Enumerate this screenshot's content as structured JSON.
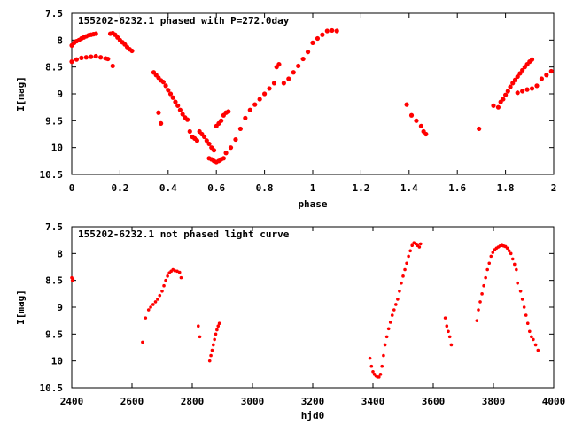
{
  "chart_data": [
    {
      "type": "scatter",
      "title": "155202-6232.1 phased with P=272.0day",
      "xlabel": "phase",
      "ylabel": "I[mag]",
      "xlim": [
        0,
        2
      ],
      "ylim": [
        10.5,
        7.5
      ],
      "y_inverted": true,
      "xticks": [
        "0",
        "0.2",
        "0.4",
        "0.6",
        "0.8",
        "1",
        "1.2",
        "1.4",
        "1.6",
        "1.8",
        "2"
      ],
      "yticks": [
        "7.5",
        "8",
        "8.5",
        "9",
        "9.5",
        "10",
        "10.5"
      ],
      "grid": false,
      "marker_color": "#ff0000",
      "series": [
        {
          "x": [
            0.0,
            0.01,
            0.02,
            0.03,
            0.04,
            0.05,
            0.06,
            0.07,
            0.08,
            0.09,
            0.1,
            0.0,
            0.02,
            0.04,
            0.06,
            0.08,
            0.1,
            0.12,
            0.14,
            0.15,
            0.16,
            0.17,
            0.18,
            0.19,
            0.2,
            0.21,
            0.22,
            0.23,
            0.24,
            0.25,
            0.17,
            0.34,
            0.35,
            0.36,
            0.37,
            0.38,
            0.36,
            0.37,
            0.39,
            0.4,
            0.41,
            0.42,
            0.43,
            0.44,
            0.45,
            0.46,
            0.47,
            0.48,
            0.49,
            0.5,
            0.51,
            0.52,
            0.53,
            0.54,
            0.55,
            0.56,
            0.57,
            0.58,
            0.59,
            0.6,
            0.61,
            0.62,
            0.63,
            0.64,
            0.65,
            0.57,
            0.58,
            0.59,
            0.6,
            0.61,
            0.62,
            0.63,
            0.64,
            0.66,
            0.68,
            0.7,
            0.72,
            0.74,
            0.76,
            0.78,
            0.8,
            0.82,
            0.84,
            0.85,
            0.86,
            0.88,
            0.9,
            0.92,
            0.94,
            0.96,
            0.98,
            1.0,
            1.02,
            1.04,
            1.06,
            1.08,
            1.1,
            1.39,
            1.41,
            1.43,
            1.45,
            1.46,
            1.47,
            1.69,
            1.75,
            1.77,
            1.78,
            1.79,
            1.8,
            1.81,
            1.82,
            1.83,
            1.84,
            1.85,
            1.86,
            1.87,
            1.88,
            1.89,
            1.9,
            1.91,
            1.85,
            1.87,
            1.89,
            1.91,
            1.93,
            1.95,
            1.97,
            1.99
          ],
          "y": [
            8.1,
            8.05,
            8.02,
            8.0,
            7.97,
            7.95,
            7.93,
            7.91,
            7.9,
            7.89,
            7.88,
            8.4,
            8.36,
            8.33,
            8.32,
            8.31,
            8.3,
            8.32,
            8.34,
            8.35,
            7.88,
            7.87,
            7.9,
            7.95,
            8.0,
            8.04,
            8.08,
            8.13,
            8.17,
            8.2,
            8.48,
            8.6,
            8.65,
            8.7,
            8.75,
            8.78,
            9.35,
            9.55,
            8.85,
            8.93,
            9.0,
            9.07,
            9.15,
            9.22,
            9.3,
            9.38,
            9.44,
            9.48,
            9.7,
            9.8,
            9.83,
            9.87,
            9.7,
            9.75,
            9.8,
            9.87,
            9.93,
            10.0,
            10.05,
            9.6,
            9.55,
            9.5,
            9.4,
            9.35,
            9.33,
            10.2,
            10.22,
            10.25,
            10.27,
            10.25,
            10.22,
            10.2,
            10.1,
            10.0,
            9.85,
            9.65,
            9.45,
            9.3,
            9.2,
            9.1,
            9.0,
            8.9,
            8.8,
            8.5,
            8.45,
            8.8,
            8.72,
            8.6,
            8.48,
            8.35,
            8.22,
            8.05,
            7.97,
            7.9,
            7.83,
            7.82,
            7.83,
            9.2,
            9.4,
            9.5,
            9.6,
            9.7,
            9.75,
            9.65,
            9.22,
            9.25,
            9.15,
            9.1,
            9.02,
            8.95,
            8.87,
            8.8,
            8.74,
            8.68,
            8.62,
            8.56,
            8.5,
            8.45,
            8.4,
            8.36,
            8.98,
            8.95,
            8.92,
            8.9,
            8.85,
            8.72,
            8.65,
            8.58
          ]
        }
      ]
    },
    {
      "type": "scatter",
      "title": "155202-6232.1 not phased light curve",
      "xlabel": "hjd0",
      "ylabel": "I[mag]",
      "xlim": [
        2400,
        4000
      ],
      "ylim": [
        10.5,
        7.5
      ],
      "y_inverted": true,
      "xticks": [
        "2400",
        "2600",
        "2800",
        "3000",
        "3200",
        "3400",
        "3600",
        "3800",
        "4000"
      ],
      "yticks": [
        "7.5",
        "8",
        "8.5",
        "9",
        "9.5",
        "10",
        "10.5"
      ],
      "grid": false,
      "marker_color": "#ff0000",
      "series": [
        {
          "x": [
            2400,
            2402,
            2404,
            2635,
            2645,
            2655,
            2662,
            2670,
            2678,
            2685,
            2692,
            2700,
            2706,
            2712,
            2718,
            2724,
            2730,
            2736,
            2742,
            2750,
            2758,
            2763,
            2820,
            2825,
            2858,
            2862,
            2866,
            2870,
            2874,
            2878,
            2882,
            2886,
            2890,
            3390,
            3395,
            3400,
            3405,
            3410,
            3415,
            3420,
            3425,
            3430,
            3435,
            3440,
            3446,
            3452,
            3458,
            3464,
            3470,
            3476,
            3482,
            3488,
            3494,
            3500,
            3506,
            3512,
            3518,
            3524,
            3530,
            3536,
            3542,
            3548,
            3554,
            3558,
            3640,
            3645,
            3650,
            3655,
            3660,
            3745,
            3750,
            3756,
            3762,
            3768,
            3774,
            3780,
            3786,
            3792,
            3798,
            3804,
            3810,
            3816,
            3822,
            3828,
            3834,
            3840,
            3846,
            3852,
            3858,
            3864,
            3870,
            3876,
            3880,
            3890,
            3896,
            3902,
            3908,
            3914,
            3920,
            3926,
            3932,
            3940,
            3948
          ],
          "y": [
            8.45,
            8.5,
            8.48,
            9.65,
            9.2,
            9.05,
            9.0,
            8.95,
            8.9,
            8.85,
            8.78,
            8.7,
            8.6,
            8.5,
            8.42,
            8.36,
            8.33,
            8.3,
            8.32,
            8.33,
            8.35,
            8.45,
            9.35,
            9.55,
            10.0,
            9.9,
            9.8,
            9.7,
            9.6,
            9.5,
            9.42,
            9.35,
            9.3,
            9.95,
            10.1,
            10.2,
            10.25,
            10.28,
            10.3,
            10.3,
            10.25,
            10.1,
            9.9,
            9.7,
            9.55,
            9.4,
            9.28,
            9.15,
            9.05,
            8.95,
            8.85,
            8.7,
            8.55,
            8.42,
            8.3,
            8.18,
            8.05,
            7.95,
            7.85,
            7.8,
            7.82,
            7.85,
            7.88,
            7.82,
            9.2,
            9.35,
            9.45,
            9.55,
            9.7,
            9.25,
            9.05,
            8.9,
            8.75,
            8.6,
            8.45,
            8.3,
            8.18,
            8.05,
            7.98,
            7.93,
            7.9,
            7.88,
            7.86,
            7.85,
            7.86,
            7.87,
            7.9,
            7.95,
            8.0,
            8.1,
            8.2,
            8.3,
            8.55,
            8.7,
            8.85,
            9.0,
            9.15,
            9.3,
            9.45,
            9.55,
            9.6,
            9.7,
            9.8
          ]
        }
      ]
    }
  ]
}
